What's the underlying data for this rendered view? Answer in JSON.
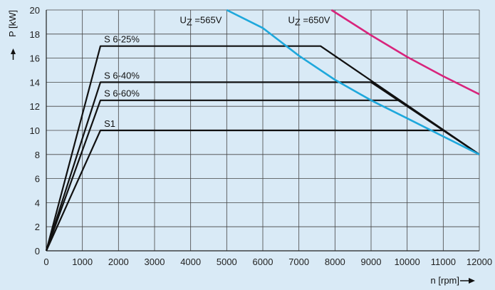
{
  "chart_data": {
    "type": "line",
    "title": "",
    "xlabel": "n [rpm]",
    "ylabel": "P [kW]",
    "xlim": [
      0,
      12000
    ],
    "ylim": [
      0,
      20
    ],
    "xticks": [
      0,
      1000,
      2000,
      3000,
      4000,
      5000,
      6000,
      7000,
      8000,
      9000,
      10000,
      11000,
      12000
    ],
    "yticks": [
      0,
      2,
      4,
      6,
      8,
      10,
      12,
      14,
      16,
      18,
      20
    ],
    "grid": true,
    "series": [
      {
        "name": "S 6-25%",
        "color": "#111111",
        "x": [
          0,
          1500,
          7600,
          12000
        ],
        "y": [
          0,
          17,
          17,
          8
        ]
      },
      {
        "name": "S 6-40%",
        "color": "#111111",
        "x": [
          0,
          1500,
          9000,
          12000
        ],
        "y": [
          0,
          14,
          14,
          8
        ]
      },
      {
        "name": "S 6-60%",
        "color": "#111111",
        "x": [
          0,
          1500,
          9800,
          12000
        ],
        "y": [
          0,
          12.5,
          12.5,
          8
        ]
      },
      {
        "name": "S1",
        "color": "#111111",
        "x": [
          0,
          1500,
          11000,
          12000
        ],
        "y": [
          0,
          10,
          10,
          8
        ]
      },
      {
        "name": "UZ =565V",
        "color": "#1ea8dc",
        "x": [
          5000,
          6000,
          7000,
          8000,
          9000,
          10000,
          11000,
          12000
        ],
        "y": [
          20,
          18.5,
          16.2,
          14.2,
          12.5,
          11,
          9.5,
          8
        ]
      },
      {
        "name": "UZ =650V",
        "color": "#d8247c",
        "x": [
          7900,
          9000,
          10000,
          11000,
          12000
        ],
        "y": [
          20,
          17.9,
          16.1,
          14.5,
          13
        ]
      }
    ],
    "curve_labels": [
      {
        "text": "S 6-25%",
        "x": 1600,
        "y": 17.3
      },
      {
        "text": "S 6-40%",
        "x": 1600,
        "y": 14.3
      },
      {
        "text": "S 6-60%",
        "x": 1600,
        "y": 12.8
      },
      {
        "text": "S1",
        "x": 1600,
        "y": 10.3
      },
      {
        "text": "UZ =565V",
        "x": 3700,
        "y": 18.9
      },
      {
        "text": "UZ =650V",
        "x": 6700,
        "y": 18.9
      }
    ]
  }
}
